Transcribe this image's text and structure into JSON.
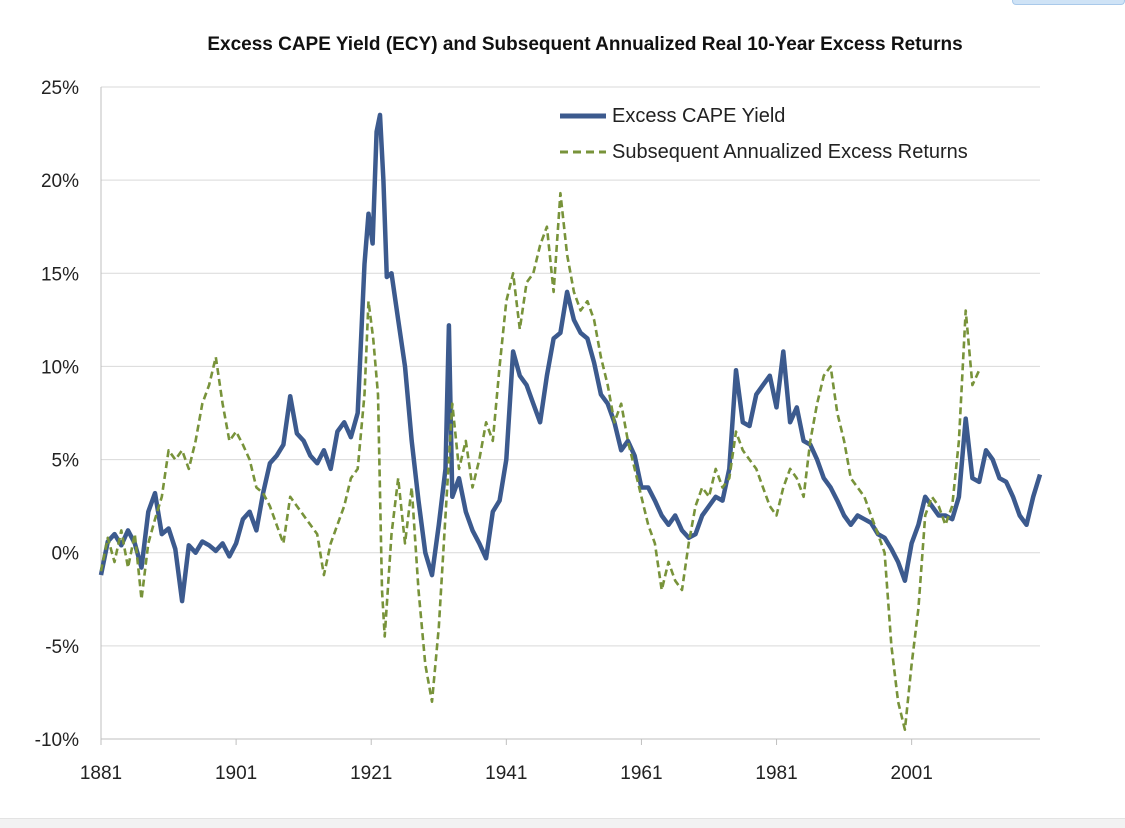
{
  "colors": {
    "ecy": "#3c5a8e",
    "returns": "#78933a",
    "grid": "#d9d9d9",
    "axis": "#bfbfbf"
  },
  "chart_data": {
    "type": "line",
    "title": "Excess CAPE Yield (ECY) and Subsequent Annualized Real 10-Year Excess Returns",
    "xlabel": "",
    "ylabel": "",
    "xlim": [
      1881,
      2020
    ],
    "ylim": [
      -0.1,
      0.25
    ],
    "yticks": [
      -0.1,
      -0.05,
      0,
      0.05,
      0.1,
      0.15,
      0.2,
      0.25
    ],
    "ytick_labels": [
      "-10%",
      "-5%",
      "0%",
      "5%",
      "10%",
      "15%",
      "20%",
      "25%"
    ],
    "xticks": [
      1881,
      1901,
      1921,
      1941,
      1961,
      1981,
      2001
    ],
    "xtick_labels": [
      "1881",
      "1901",
      "1921",
      "1941",
      "1961",
      "1981",
      "2001"
    ],
    "grid": "horizontal",
    "legend": {
      "position": "top-right",
      "entries": [
        "Excess CAPE Yield",
        "Subsequent Annualized Excess Returns"
      ]
    },
    "series": [
      {
        "name": "Excess CAPE Yield",
        "style": "solid",
        "points": [
          [
            1881,
            -0.012
          ],
          [
            1882,
            0.006
          ],
          [
            1883,
            0.01
          ],
          [
            1884,
            0.004
          ],
          [
            1885,
            0.012
          ],
          [
            1886,
            0.005
          ],
          [
            1887,
            -0.008
          ],
          [
            1888,
            0.022
          ],
          [
            1889,
            0.032
          ],
          [
            1890,
            0.01
          ],
          [
            1891,
            0.013
          ],
          [
            1892,
            0.002
          ],
          [
            1893,
            -0.026
          ],
          [
            1894,
            0.004
          ],
          [
            1895,
            0.0
          ],
          [
            1896,
            0.006
          ],
          [
            1897,
            0.004
          ],
          [
            1898,
            0.001
          ],
          [
            1899,
            0.005
          ],
          [
            1900,
            -0.002
          ],
          [
            1901,
            0.005
          ],
          [
            1902,
            0.018
          ],
          [
            1903,
            0.022
          ],
          [
            1904,
            0.012
          ],
          [
            1905,
            0.032
          ],
          [
            1906,
            0.048
          ],
          [
            1907,
            0.052
          ],
          [
            1908,
            0.058
          ],
          [
            1909,
            0.084
          ],
          [
            1910,
            0.064
          ],
          [
            1911,
            0.06
          ],
          [
            1912,
            0.052
          ],
          [
            1913,
            0.048
          ],
          [
            1914,
            0.055
          ],
          [
            1915,
            0.045
          ],
          [
            1916,
            0.065
          ],
          [
            1917,
            0.07
          ],
          [
            1918,
            0.062
          ],
          [
            1919,
            0.075
          ],
          [
            1920,
            0.155
          ],
          [
            1920.6,
            0.182
          ],
          [
            1921.2,
            0.166
          ],
          [
            1921.8,
            0.226
          ],
          [
            1922.3,
            0.235
          ],
          [
            1922.8,
            0.2
          ],
          [
            1923.3,
            0.148
          ],
          [
            1924,
            0.15
          ],
          [
            1925,
            0.125
          ],
          [
            1926,
            0.1
          ],
          [
            1927,
            0.06
          ],
          [
            1928,
            0.028
          ],
          [
            1929,
            0.0
          ],
          [
            1930,
            -0.012
          ],
          [
            1931,
            0.015
          ],
          [
            1932,
            0.045
          ],
          [
            1932.5,
            0.122
          ],
          [
            1933,
            0.03
          ],
          [
            1934,
            0.04
          ],
          [
            1935,
            0.022
          ],
          [
            1936,
            0.012
          ],
          [
            1937,
            0.005
          ],
          [
            1938,
            -0.003
          ],
          [
            1939,
            0.022
          ],
          [
            1940,
            0.028
          ],
          [
            1941,
            0.05
          ],
          [
            1942,
            0.108
          ],
          [
            1943,
            0.095
          ],
          [
            1944,
            0.09
          ],
          [
            1945,
            0.08
          ],
          [
            1946,
            0.07
          ],
          [
            1947,
            0.095
          ],
          [
            1948,
            0.115
          ],
          [
            1949,
            0.118
          ],
          [
            1950,
            0.14
          ],
          [
            1951,
            0.125
          ],
          [
            1952,
            0.118
          ],
          [
            1953,
            0.115
          ],
          [
            1954,
            0.102
          ],
          [
            1955,
            0.085
          ],
          [
            1956,
            0.08
          ],
          [
            1957,
            0.07
          ],
          [
            1958,
            0.055
          ],
          [
            1959,
            0.06
          ],
          [
            1960,
            0.052
          ],
          [
            1961,
            0.035
          ],
          [
            1962,
            0.035
          ],
          [
            1963,
            0.028
          ],
          [
            1964,
            0.02
          ],
          [
            1965,
            0.015
          ],
          [
            1966,
            0.02
          ],
          [
            1967,
            0.012
          ],
          [
            1968,
            0.008
          ],
          [
            1969,
            0.01
          ],
          [
            1970,
            0.02
          ],
          [
            1971,
            0.025
          ],
          [
            1972,
            0.03
          ],
          [
            1973,
            0.028
          ],
          [
            1974,
            0.045
          ],
          [
            1975,
            0.098
          ],
          [
            1976,
            0.07
          ],
          [
            1977,
            0.068
          ],
          [
            1978,
            0.085
          ],
          [
            1979,
            0.09
          ],
          [
            1980,
            0.095
          ],
          [
            1981,
            0.078
          ],
          [
            1982,
            0.108
          ],
          [
            1983,
            0.07
          ],
          [
            1984,
            0.078
          ],
          [
            1985,
            0.06
          ],
          [
            1986,
            0.058
          ],
          [
            1987,
            0.05
          ],
          [
            1988,
            0.04
          ],
          [
            1989,
            0.035
          ],
          [
            1990,
            0.028
          ],
          [
            1991,
            0.02
          ],
          [
            1992,
            0.015
          ],
          [
            1993,
            0.02
          ],
          [
            1994,
            0.018
          ],
          [
            1995,
            0.016
          ],
          [
            1996,
            0.01
          ],
          [
            1997,
            0.008
          ],
          [
            1998,
            0.002
          ],
          [
            1999,
            -0.005
          ],
          [
            2000,
            -0.015
          ],
          [
            2001,
            0.005
          ],
          [
            2002,
            0.015
          ],
          [
            2003,
            0.03
          ],
          [
            2004,
            0.025
          ],
          [
            2005,
            0.02
          ],
          [
            2006,
            0.02
          ],
          [
            2007,
            0.018
          ],
          [
            2008,
            0.03
          ],
          [
            2009,
            0.072
          ],
          [
            2010,
            0.04
          ],
          [
            2011,
            0.038
          ],
          [
            2012,
            0.055
          ],
          [
            2013,
            0.05
          ],
          [
            2014,
            0.04
          ],
          [
            2015,
            0.038
          ],
          [
            2016,
            0.03
          ],
          [
            2017,
            0.02
          ],
          [
            2018,
            0.015
          ],
          [
            2019,
            0.03
          ],
          [
            2020,
            0.042
          ]
        ]
      },
      {
        "name": "Subsequent Annualized Excess Returns",
        "style": "dashed",
        "points": [
          [
            1881,
            -0.01
          ],
          [
            1882,
            0.008
          ],
          [
            1883,
            -0.005
          ],
          [
            1884,
            0.012
          ],
          [
            1885,
            -0.008
          ],
          [
            1886,
            0.01
          ],
          [
            1887,
            -0.025
          ],
          [
            1888,
            0.005
          ],
          [
            1889,
            0.018
          ],
          [
            1890,
            0.03
          ],
          [
            1891,
            0.055
          ],
          [
            1892,
            0.05
          ],
          [
            1893,
            0.055
          ],
          [
            1894,
            0.045
          ],
          [
            1895,
            0.06
          ],
          [
            1896,
            0.08
          ],
          [
            1897,
            0.09
          ],
          [
            1898,
            0.105
          ],
          [
            1899,
            0.08
          ],
          [
            1900,
            0.06
          ],
          [
            1901,
            0.065
          ],
          [
            1902,
            0.058
          ],
          [
            1903,
            0.05
          ],
          [
            1904,
            0.035
          ],
          [
            1905,
            0.032
          ],
          [
            1906,
            0.025
          ],
          [
            1907,
            0.015
          ],
          [
            1908,
            0.005
          ],
          [
            1909,
            0.03
          ],
          [
            1910,
            0.025
          ],
          [
            1911,
            0.02
          ],
          [
            1912,
            0.015
          ],
          [
            1913,
            0.01
          ],
          [
            1914,
            -0.012
          ],
          [
            1915,
            0.005
          ],
          [
            1916,
            0.015
          ],
          [
            1917,
            0.025
          ],
          [
            1918,
            0.04
          ],
          [
            1919,
            0.045
          ],
          [
            1920,
            0.085
          ],
          [
            1920.6,
            0.135
          ],
          [
            1921.3,
            0.115
          ],
          [
            1922,
            0.085
          ],
          [
            1922.6,
            -0.02
          ],
          [
            1923,
            -0.045
          ],
          [
            1924,
            0.01
          ],
          [
            1925,
            0.04
          ],
          [
            1926,
            0.005
          ],
          [
            1927,
            0.035
          ],
          [
            1928,
            -0.02
          ],
          [
            1929,
            -0.06
          ],
          [
            1930,
            -0.08
          ],
          [
            1931,
            -0.04
          ],
          [
            1932,
            0.02
          ],
          [
            1933,
            0.08
          ],
          [
            1934,
            0.045
          ],
          [
            1935,
            0.06
          ],
          [
            1936,
            0.035
          ],
          [
            1937,
            0.05
          ],
          [
            1938,
            0.07
          ],
          [
            1939,
            0.06
          ],
          [
            1940,
            0.1
          ],
          [
            1941,
            0.135
          ],
          [
            1942,
            0.15
          ],
          [
            1943,
            0.12
          ],
          [
            1944,
            0.145
          ],
          [
            1945,
            0.15
          ],
          [
            1946,
            0.165
          ],
          [
            1947,
            0.175
          ],
          [
            1948,
            0.14
          ],
          [
            1949,
            0.193
          ],
          [
            1950,
            0.16
          ],
          [
            1951,
            0.14
          ],
          [
            1952,
            0.13
          ],
          [
            1953,
            0.135
          ],
          [
            1954,
            0.125
          ],
          [
            1955,
            0.105
          ],
          [
            1956,
            0.09
          ],
          [
            1957,
            0.07
          ],
          [
            1958,
            0.08
          ],
          [
            1959,
            0.06
          ],
          [
            1960,
            0.045
          ],
          [
            1961,
            0.03
          ],
          [
            1962,
            0.015
          ],
          [
            1963,
            0.005
          ],
          [
            1964,
            -0.02
          ],
          [
            1965,
            -0.005
          ],
          [
            1966,
            -0.015
          ],
          [
            1967,
            -0.02
          ],
          [
            1968,
            0.005
          ],
          [
            1969,
            0.025
          ],
          [
            1970,
            0.035
          ],
          [
            1971,
            0.03
          ],
          [
            1972,
            0.045
          ],
          [
            1973,
            0.035
          ],
          [
            1974,
            0.04
          ],
          [
            1975,
            0.065
          ],
          [
            1976,
            0.055
          ],
          [
            1977,
            0.05
          ],
          [
            1978,
            0.045
          ],
          [
            1979,
            0.035
          ],
          [
            1980,
            0.025
          ],
          [
            1981,
            0.02
          ],
          [
            1982,
            0.035
          ],
          [
            1983,
            0.045
          ],
          [
            1984,
            0.04
          ],
          [
            1985,
            0.03
          ],
          [
            1986,
            0.06
          ],
          [
            1987,
            0.08
          ],
          [
            1988,
            0.095
          ],
          [
            1989,
            0.1
          ],
          [
            1990,
            0.075
          ],
          [
            1991,
            0.06
          ],
          [
            1992,
            0.04
          ],
          [
            1993,
            0.035
          ],
          [
            1994,
            0.03
          ],
          [
            1995,
            0.02
          ],
          [
            1996,
            0.01
          ],
          [
            1997,
            0.0
          ],
          [
            1998,
            -0.05
          ],
          [
            1999,
            -0.08
          ],
          [
            2000,
            -0.095
          ],
          [
            2001,
            -0.06
          ],
          [
            2002,
            -0.03
          ],
          [
            2003,
            0.02
          ],
          [
            2004,
            0.03
          ],
          [
            2005,
            0.025
          ],
          [
            2006,
            0.015
          ],
          [
            2007,
            0.025
          ],
          [
            2008,
            0.06
          ],
          [
            2009,
            0.13
          ],
          [
            2010,
            0.09
          ],
          [
            2011,
            0.098
          ]
        ]
      }
    ]
  }
}
